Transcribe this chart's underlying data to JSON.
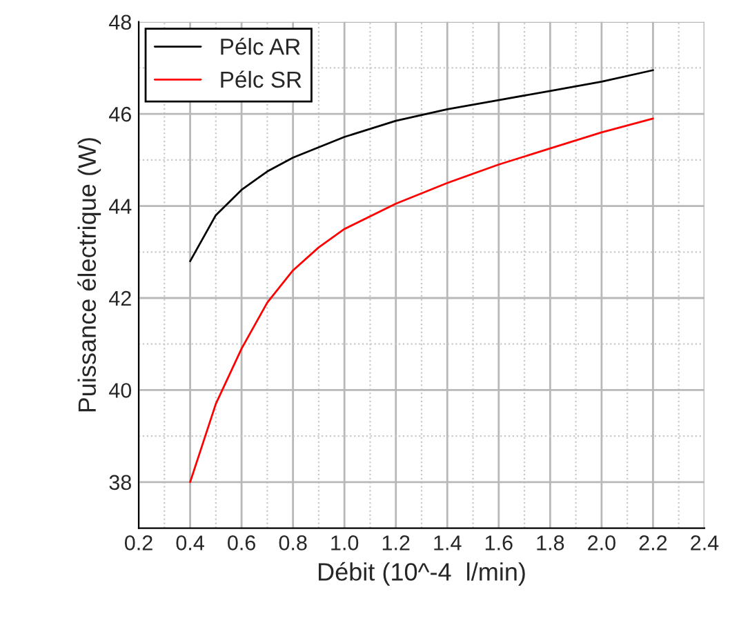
{
  "chart_data": {
    "type": "line",
    "xlabel": "Débit (10^-4  l/min)",
    "ylabel": "Puissance électrique (W)",
    "xlim": [
      0.2,
      2.4
    ],
    "xticks": [
      0.2,
      0.4,
      0.6,
      0.8,
      {
        "value": 1.0,
        "label": "1.0"
      },
      1.2,
      1.4,
      1.6,
      1.8,
      {
        "value": 2.0,
        "label": "2.0"
      },
      2.2,
      2.4
    ],
    "ylim": [
      37,
      48
    ],
    "yticks": [
      38,
      40,
      42,
      44,
      46,
      48
    ],
    "grid": true,
    "legend": "top left",
    "series": [
      {
        "name": "Pélc AR",
        "color": "#000000",
        "x": [
          0.4,
          0.5,
          0.6,
          0.7,
          0.8,
          1.0,
          1.2,
          1.4,
          1.6,
          1.8,
          2.0,
          2.2
        ],
        "values": [
          42.8,
          43.8,
          44.35,
          44.75,
          45.05,
          45.5,
          45.85,
          46.1,
          46.3,
          46.5,
          46.7,
          46.95
        ]
      },
      {
        "name": "Pélc SR",
        "color": "#ff0000",
        "x": [
          0.4,
          0.5,
          0.6,
          0.7,
          0.8,
          0.9,
          1.0,
          1.2,
          1.4,
          1.6,
          1.8,
          2.0,
          2.2
        ],
        "values": [
          38.0,
          39.7,
          40.9,
          41.9,
          42.6,
          43.1,
          43.5,
          44.05,
          44.5,
          44.9,
          45.25,
          45.6,
          45.9
        ]
      }
    ]
  }
}
